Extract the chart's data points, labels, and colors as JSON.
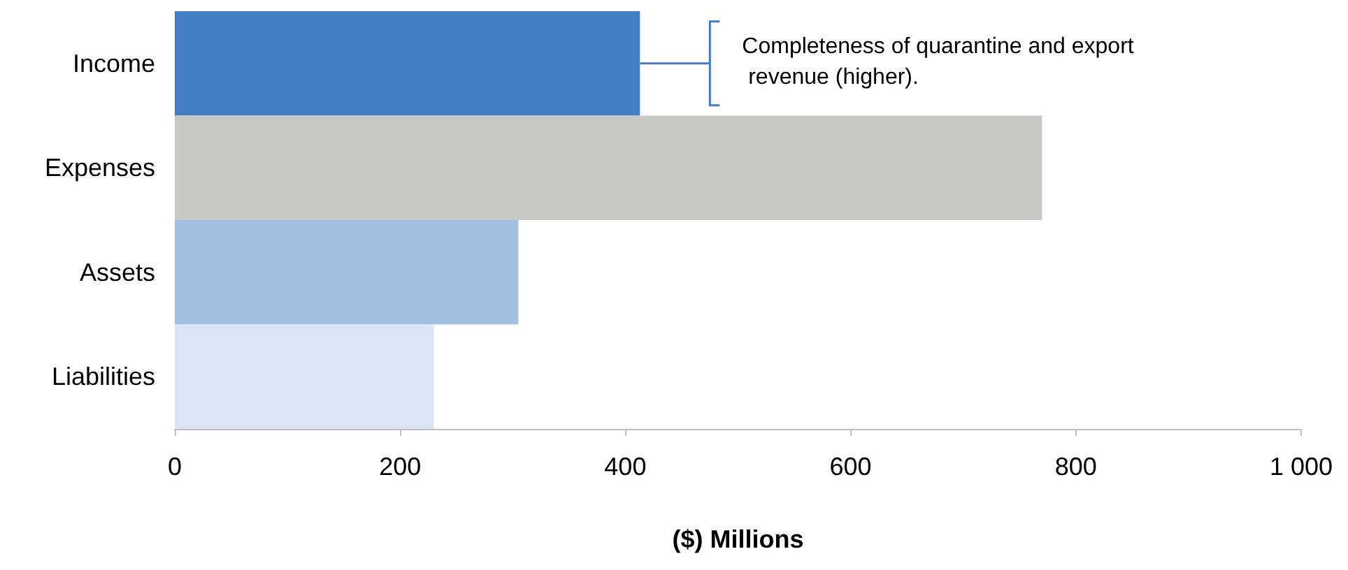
{
  "chart_data": {
    "type": "bar",
    "orientation": "horizontal",
    "categories": [
      "Income",
      "Expenses",
      "Assets",
      "Liabilities"
    ],
    "values": [
      413,
      770,
      305,
      230
    ],
    "colors": [
      "#437ec0",
      "#c8c8c6",
      "#a3bfdf",
      "#dce5f3"
    ],
    "xlabel": "($) Millions",
    "xlim": [
      0,
      1000
    ],
    "xticks": [
      0,
      200,
      400,
      600,
      800,
      {
        "value": 1000,
        "label": "1 000"
      }
    ],
    "grid": false,
    "annotations": [
      "Completeness of quarantine and export\n revenue (higher)."
    ]
  }
}
